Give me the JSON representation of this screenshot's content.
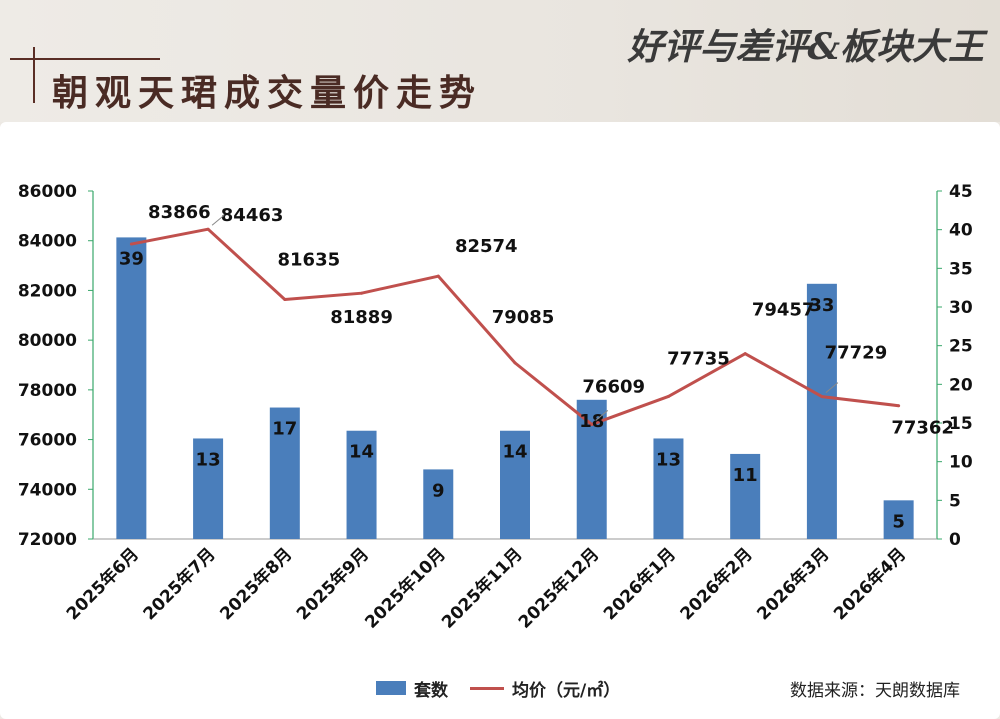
{
  "header": {
    "title": "朝观天珺成交量价走势",
    "brand": "好评与差评&板块大王"
  },
  "legend": {
    "bar_label": "套数",
    "line_label": "均价（元/㎡）"
  },
  "source": "数据来源：天朗数据库",
  "colors": {
    "bar": "#4a7ebb",
    "line": "#c0504d",
    "right_axis": "#3aa86b"
  },
  "chart_data": {
    "type": "bar",
    "categories": [
      "2025年6月",
      "2025年7月",
      "2025年8月",
      "2025年9月",
      "2025年10月",
      "2025年11月",
      "2025年12月",
      "2026年1月",
      "2026年2月",
      "2026年3月",
      "2026年4月"
    ],
    "series": [
      {
        "name": "套数",
        "type": "bar",
        "axis": "right",
        "values": [
          39,
          13,
          17,
          14,
          9,
          14,
          18,
          13,
          11,
          33,
          5
        ]
      },
      {
        "name": "均价（元/㎡）",
        "type": "line",
        "axis": "left",
        "values": [
          83866,
          84463,
          81635,
          81889,
          82574,
          79085,
          76609,
          77735,
          79457,
          77729,
          77362
        ]
      }
    ],
    "y_left": {
      "min": 72000,
      "max": 86000,
      "ticks": [
        "72000",
        "74000",
        "76000",
        "78000",
        "80000",
        "82000",
        "84000",
        "86000"
      ]
    },
    "y_right": {
      "min": 0,
      "max": 45,
      "ticks": [
        "0",
        "5",
        "10",
        "15",
        "20",
        "25",
        "30",
        "35",
        "40",
        "45"
      ]
    },
    "grid": false
  }
}
